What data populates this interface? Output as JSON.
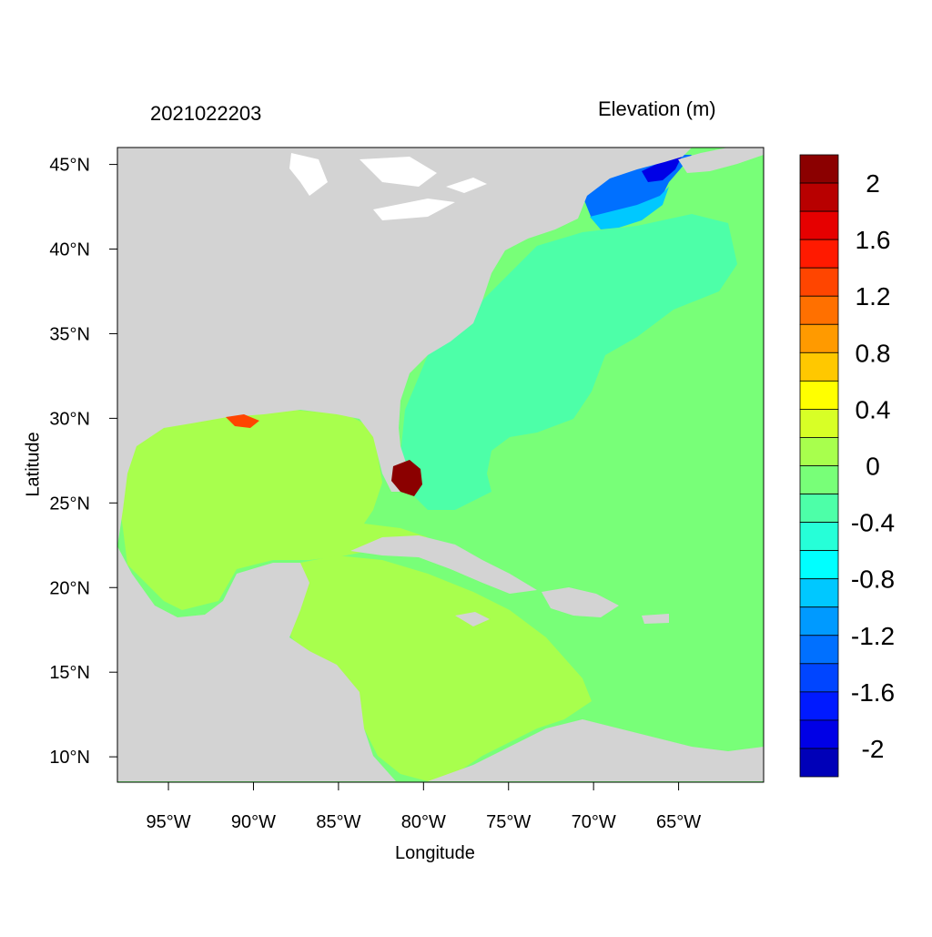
{
  "titles": {
    "left": "2021022203",
    "right": "Elevation (m)"
  },
  "axes": {
    "xlabel": "Longitude",
    "ylabel": "Latitude",
    "x_ticks": [
      "95°W",
      "90°W",
      "85°W",
      "80°W",
      "75°W",
      "70°W",
      "65°W"
    ],
    "x_tick_values": [
      -95,
      -90,
      -85,
      -80,
      -75,
      -70,
      -65
    ],
    "y_ticks": [
      "45°N",
      "40°N",
      "35°N",
      "30°N",
      "25°N",
      "20°N",
      "15°N",
      "10°N"
    ],
    "y_tick_values": [
      45,
      40,
      35,
      30,
      25,
      20,
      15,
      10
    ],
    "xlim": [
      -98,
      -60
    ],
    "ylim": [
      8.5,
      46
    ]
  },
  "colorbar": {
    "levels": [
      -2.2,
      -2.0,
      -1.8,
      -1.6,
      -1.4,
      -1.2,
      -1.0,
      -0.8,
      -0.6,
      -0.4,
      -0.2,
      0.0,
      0.2,
      0.4,
      0.6,
      0.8,
      1.0,
      1.2,
      1.4,
      1.6,
      1.8,
      2.0,
      2.2
    ],
    "labels": [
      "2",
      "1.6",
      "1.2",
      "0.8",
      "0.4",
      "0",
      "-0.4",
      "-0.8",
      "-1.2",
      "-1.6",
      "-2"
    ],
    "colors_top_to_bottom": [
      "#8b0000",
      "#b80000",
      "#e60000",
      "#ff1a00",
      "#ff4500",
      "#ff7000",
      "#ff9a00",
      "#ffc800",
      "#ffff00",
      "#d8ff26",
      "#a8ff4d",
      "#78ff78",
      "#4dffa8",
      "#26ffd8",
      "#00ffff",
      "#00c8ff",
      "#009aff",
      "#0070ff",
      "#0045ff",
      "#001aff",
      "#0000e6",
      "#0000b8"
    ]
  },
  "colors": {
    "land": "#d3d3d3",
    "gulf_caribbean": "#a8ff4d",
    "atlantic_band1": "#78ff78",
    "atlantic_band2": "#4dffa8",
    "gulf_of_maine": "#0070ff",
    "surge_high": "#8b0000"
  }
}
